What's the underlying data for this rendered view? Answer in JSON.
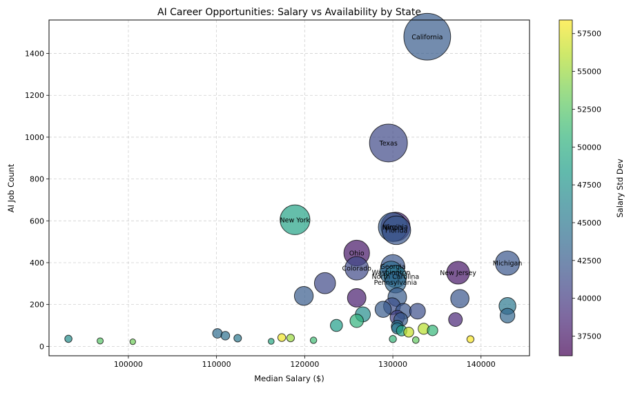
{
  "chart_data": {
    "type": "scatter",
    "title": "AI Career Opportunities: Salary vs Availability by State",
    "xlabel": "Median Salary ($)",
    "ylabel": "AI Job Count",
    "colorbar_label": "Salary Std Dev",
    "xlim": [
      91000,
      145500
    ],
    "ylim": [
      -45,
      1560
    ],
    "x_ticks": [
      100000,
      110000,
      120000,
      130000,
      140000
    ],
    "x_tick_labels": [
      "100000",
      "110000",
      "120000",
      "130000",
      "140000"
    ],
    "y_ticks": [
      0,
      200,
      400,
      600,
      800,
      1000,
      1200,
      1400
    ],
    "y_tick_labels": [
      "0",
      "200",
      "400",
      "600",
      "800",
      "1000",
      "1200",
      "1400"
    ],
    "colorbar_range": [
      36200,
      58400
    ],
    "colorbar_ticks": [
      37500,
      40000,
      42500,
      45000,
      47500,
      50000,
      52500,
      55000,
      57500
    ],
    "colorbar_tick_labels": [
      "37500",
      "40000",
      "42500",
      "45000",
      "47500",
      "50000",
      "52500",
      "55000",
      "57500"
    ],
    "colormap": "viridis",
    "marker_alpha": 0.7,
    "grid": true,
    "size_encodes": "AI Job Count",
    "points": [
      {
        "label": "California",
        "x": 133900,
        "y": 1480,
        "c": 42500
      },
      {
        "label": "Texas",
        "x": 129500,
        "y": 972,
        "c": 41000
      },
      {
        "label": "New York",
        "x": 118900,
        "y": 605,
        "c": 49000
      },
      {
        "label": "Illinois",
        "x": 130000,
        "y": 570,
        "c": 42500
      },
      {
        "label": "Virginia",
        "x": 130300,
        "y": 572,
        "c": 38500
      },
      {
        "label": "Florida",
        "x": 130400,
        "y": 555,
        "c": 42000
      },
      {
        "label": "Ohio",
        "x": 125900,
        "y": 446,
        "c": 37500
      },
      {
        "label": "Michigan",
        "x": 143000,
        "y": 398,
        "c": 42000
      },
      {
        "label": "Georgia",
        "x": 130000,
        "y": 382,
        "c": 42000
      },
      {
        "label": "Colorado",
        "x": 125900,
        "y": 373,
        "c": 41000
      },
      {
        "label": "Washington",
        "x": 129800,
        "y": 353,
        "c": 44000
      },
      {
        "label": "New Jersey",
        "x": 137400,
        "y": 352,
        "c": 37500
      },
      {
        "label": "North Carolina",
        "x": 130300,
        "y": 334,
        "c": 45000
      },
      {
        "label": "Pennsylvania",
        "x": 130300,
        "y": 306,
        "c": 43500
      },
      {
        "label": "",
        "x": 122300,
        "y": 302,
        "c": 41000
      },
      {
        "label": "",
        "x": 119900,
        "y": 241,
        "c": 42500
      },
      {
        "label": "",
        "x": 125900,
        "y": 232,
        "c": 38000
      },
      {
        "label": "",
        "x": 130500,
        "y": 235,
        "c": 42500
      },
      {
        "label": "",
        "x": 137600,
        "y": 228,
        "c": 42000
      },
      {
        "label": "",
        "x": 129900,
        "y": 192,
        "c": 41500
      },
      {
        "label": "",
        "x": 143000,
        "y": 193,
        "c": 45000
      },
      {
        "label": "",
        "x": 128900,
        "y": 177,
        "c": 42500
      },
      {
        "label": "",
        "x": 131200,
        "y": 168,
        "c": 42000
      },
      {
        "label": "",
        "x": 132800,
        "y": 168,
        "c": 41500
      },
      {
        "label": "",
        "x": 126600,
        "y": 153,
        "c": 47000
      },
      {
        "label": "",
        "x": 143000,
        "y": 147,
        "c": 43500
      },
      {
        "label": "",
        "x": 130500,
        "y": 138,
        "c": 40500
      },
      {
        "label": "",
        "x": 130900,
        "y": 128,
        "c": 42500
      },
      {
        "label": "",
        "x": 137100,
        "y": 128,
        "c": 38500
      },
      {
        "label": "",
        "x": 125900,
        "y": 122,
        "c": 50500
      },
      {
        "label": "",
        "x": 123600,
        "y": 100,
        "c": 48500
      },
      {
        "label": "",
        "x": 130500,
        "y": 96,
        "c": 44500
      },
      {
        "label": "",
        "x": 130500,
        "y": 86,
        "c": 45000
      },
      {
        "label": "",
        "x": 133500,
        "y": 84,
        "c": 56000
      },
      {
        "label": "",
        "x": 131000,
        "y": 75,
        "c": 49000
      },
      {
        "label": "",
        "x": 131800,
        "y": 68,
        "c": 56500
      },
      {
        "label": "",
        "x": 134500,
        "y": 76,
        "c": 51000
      },
      {
        "label": "",
        "x": 110100,
        "y": 62,
        "c": 44000
      },
      {
        "label": "",
        "x": 111000,
        "y": 51,
        "c": 44500
      },
      {
        "label": "",
        "x": 112400,
        "y": 39,
        "c": 45000
      },
      {
        "label": "",
        "x": 117400,
        "y": 42,
        "c": 58000
      },
      {
        "label": "",
        "x": 118400,
        "y": 40,
        "c": 55000
      },
      {
        "label": "",
        "x": 93200,
        "y": 36,
        "c": 47000
      },
      {
        "label": "",
        "x": 96800,
        "y": 26,
        "c": 52500
      },
      {
        "label": "",
        "x": 100500,
        "y": 22,
        "c": 53500
      },
      {
        "label": "",
        "x": 116200,
        "y": 24,
        "c": 49500
      },
      {
        "label": "",
        "x": 121000,
        "y": 29,
        "c": 51500
      },
      {
        "label": "",
        "x": 130000,
        "y": 35,
        "c": 51000
      },
      {
        "label": "",
        "x": 132600,
        "y": 30,
        "c": 53000
      },
      {
        "label": "",
        "x": 138800,
        "y": 34,
        "c": 58300
      }
    ]
  }
}
